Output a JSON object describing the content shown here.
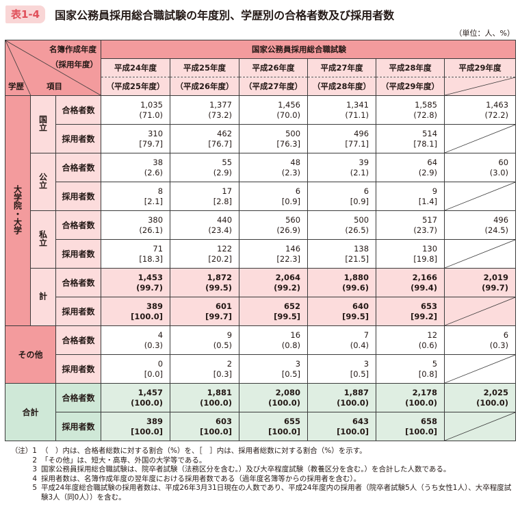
{
  "header": {
    "tag": "表1-4",
    "title": "国家公務員採用総合職試験の年度別、学歴別の合格者数及び採用者数",
    "unit": "（単位：人、%）"
  },
  "table": {
    "corner": {
      "top_right_1": "名簿作成年度",
      "top_right_2": "（採用年度）",
      "bottom_left": "学歴",
      "bottom_mid": "項目"
    },
    "exam_name": "国家公務員採用総合職試験",
    "years": [
      {
        "list_year": "平成24年度",
        "hire_year": "（平成25年度）"
      },
      {
        "list_year": "平成25年度",
        "hire_year": "（平成26年度）"
      },
      {
        "list_year": "平成26年度",
        "hire_year": "（平成27年度）"
      },
      {
        "list_year": "平成27年度",
        "hire_year": "（平成28年度）"
      },
      {
        "list_year": "平成28年度",
        "hire_year": "（平成29年度）"
      },
      {
        "list_year": "平成29年度",
        "hire_year": ""
      }
    ],
    "item_labels": {
      "pass": "合格者数",
      "hire": "採用者数"
    },
    "groups": {
      "univ": "大学院・大学",
      "national": "国立",
      "public": "公立",
      "private": "私立",
      "subtotal": "計",
      "other": "その他",
      "total": "合計"
    },
    "rows": {
      "national_pass": [
        [
          "1,035",
          "(71.0)"
        ],
        [
          "1,377",
          "(73.2)"
        ],
        [
          "1,456",
          "(70.0)"
        ],
        [
          "1,341",
          "(71.1)"
        ],
        [
          "1,585",
          "(72.8)"
        ],
        [
          "1,463",
          "(72.2)"
        ]
      ],
      "national_hire": [
        [
          "310",
          "[79.7]"
        ],
        [
          "462",
          "[76.7]"
        ],
        [
          "500",
          "[76.3]"
        ],
        [
          "496",
          "[77.1]"
        ],
        [
          "514",
          "[78.1]"
        ]
      ],
      "public_pass": [
        [
          "38",
          "(2.6)"
        ],
        [
          "55",
          "(2.9)"
        ],
        [
          "48",
          "(2.3)"
        ],
        [
          "39",
          "(2.1)"
        ],
        [
          "64",
          "(2.9)"
        ],
        [
          "60",
          "(3.0)"
        ]
      ],
      "public_hire": [
        [
          "8",
          "[2.1]"
        ],
        [
          "17",
          "[2.8]"
        ],
        [
          "6",
          "[0.9]"
        ],
        [
          "6",
          "[0.9]"
        ],
        [
          "9",
          "[1.4]"
        ]
      ],
      "private_pass": [
        [
          "380",
          "(26.1)"
        ],
        [
          "440",
          "(23.4)"
        ],
        [
          "560",
          "(26.9)"
        ],
        [
          "500",
          "(26.5)"
        ],
        [
          "517",
          "(23.7)"
        ],
        [
          "496",
          "(24.5)"
        ]
      ],
      "private_hire": [
        [
          "71",
          "[18.3]"
        ],
        [
          "122",
          "[20.2]"
        ],
        [
          "146",
          "[22.3]"
        ],
        [
          "138",
          "[21.5]"
        ],
        [
          "130",
          "[19.8]"
        ]
      ],
      "subtotal_pass": [
        [
          "1,453",
          "(99.7)"
        ],
        [
          "1,872",
          "(99.5)"
        ],
        [
          "2,064",
          "(99.2)"
        ],
        [
          "1,880",
          "(99.6)"
        ],
        [
          "2,166",
          "(99.4)"
        ],
        [
          "2,019",
          "(99.7)"
        ]
      ],
      "subtotal_hire": [
        [
          "389",
          "[100.0]"
        ],
        [
          "601",
          "[99.7]"
        ],
        [
          "652",
          "[99.5]"
        ],
        [
          "640",
          "[99.5]"
        ],
        [
          "653",
          "[99.2]"
        ]
      ],
      "other_pass": [
        [
          "4",
          "(0.3)"
        ],
        [
          "9",
          "(0.5)"
        ],
        [
          "16",
          "(0.8)"
        ],
        [
          "7",
          "(0.4)"
        ],
        [
          "12",
          "(0.6)"
        ],
        [
          "6",
          "(0.3)"
        ]
      ],
      "other_hire": [
        [
          "0",
          "[0.0]"
        ],
        [
          "2",
          "[0.3]"
        ],
        [
          "3",
          "[0.5]"
        ],
        [
          "3",
          "[0.5]"
        ],
        [
          "5",
          "[0.8]"
        ]
      ],
      "total_pass": [
        [
          "1,457",
          "(100.0)"
        ],
        [
          "1,881",
          "(100.0)"
        ],
        [
          "2,080",
          "(100.0)"
        ],
        [
          "1,887",
          "(100.0)"
        ],
        [
          "2,178",
          "(100.0)"
        ],
        [
          "2,025",
          "(100.0)"
        ]
      ],
      "total_hire": [
        [
          "389",
          "[100.0]"
        ],
        [
          "603",
          "[100.0]"
        ],
        [
          "655",
          "[100.0]"
        ],
        [
          "643",
          "[100.0]"
        ],
        [
          "658",
          "[100.0]"
        ]
      ]
    }
  },
  "notes": [
    {
      "label": "（注）1",
      "text": "（　）内は、合格者総数に対する割合（%）を、［　］内は、採用者総数に対する割合（%）を示す。"
    },
    {
      "label": "2",
      "text": "「その他」は、短大・高専、外国の大学等である。"
    },
    {
      "label": "3",
      "text": "国家公務員採用総合職試験は、院卒者試験（法務区分を含む。）及び大卒程度試験（教養区分を含む。）を合計した人数である。"
    },
    {
      "label": "4",
      "text": "採用者数は、名簿作成年度の翌年度における採用者数である（過年度名簿等からの採用者を含む）。"
    },
    {
      "label": "5",
      "text": "平成24年度総合職試験の採用者数は、平成26年3月31日現在の人数であり、平成24年度内の採用者（院卒者試験5人（うち女性1人）、大卒程度試験3人（同0人））を含む。"
    }
  ],
  "colors": {
    "header_dark_pink": "#f39b9d",
    "header_light_pink": "#fcdcdc",
    "total_green_dark": "#cfe8d7",
    "total_green_light": "#dfeee2",
    "tag_text": "#e0505a"
  }
}
